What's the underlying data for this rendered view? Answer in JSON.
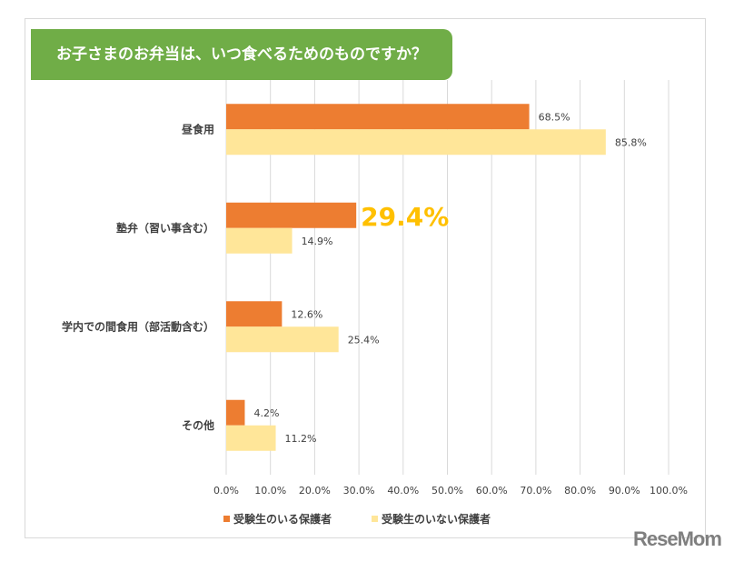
{
  "chart_data": {
    "type": "bar",
    "orientation": "horizontal",
    "title": "お子さまのお弁当は、いつ食べるためのものですか？",
    "categories": [
      "昼食用",
      "塾弁（習い事含む）",
      "学内での間食用（部活動含む）",
      "その他"
    ],
    "series": [
      {
        "name": "受験生のいる保護者",
        "color": "#ed7d31",
        "values": [
          68.5,
          29.4,
          12.6,
          4.2
        ]
      },
      {
        "name": "受験生のいない保護者",
        "color": "#ffe699",
        "values": [
          85.8,
          14.9,
          25.4,
          11.2
        ]
      }
    ],
    "highlight": {
      "category_index": 1,
      "series_index": 0,
      "color": "#ffc000"
    },
    "xlim": [
      0,
      100
    ],
    "ticks": [
      "0.0%",
      "10.0%",
      "20.0%",
      "30.0%",
      "40.0%",
      "50.0%",
      "60.0%",
      "70.0%",
      "80.0%",
      "90.0%",
      "100.0%"
    ],
    "grid": true,
    "legend": "bottom",
    "title_color": "#70ad47"
  },
  "logo": "ReseMom"
}
